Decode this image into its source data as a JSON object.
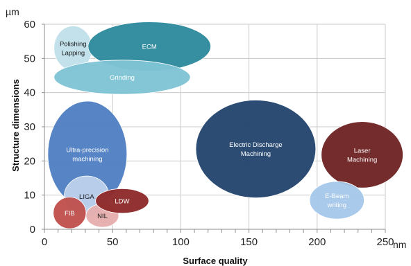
{
  "chart_data": {
    "type": "bubble",
    "xlabel": "Surface quality",
    "ylabel": "Structure dimensions",
    "x_unit": "nm",
    "y_unit": "µm",
    "xlim": [
      0,
      250
    ],
    "ylim": [
      0,
      60
    ],
    "x_ticks": [
      0,
      50,
      100,
      150,
      200,
      250
    ],
    "y_ticks": [
      0,
      10,
      20,
      30,
      40,
      50,
      60
    ],
    "grid": true,
    "bubbles": [
      {
        "id": "polishing-lapping",
        "lines": [
          "Polishing",
          "Lapping"
        ],
        "x": 21,
        "y": 53,
        "rx": 14,
        "ry": 6.5,
        "color": "#bfe0ea",
        "text_color": "#1a1a1a"
      },
      {
        "id": "ecm",
        "lines": [
          "ECM"
        ],
        "x": 77,
        "y": 53.5,
        "rx": 45,
        "ry": 7.2,
        "color": "#2e8a9d",
        "text_color": "#ffffff"
      },
      {
        "id": "grinding",
        "lines": [
          "Grinding"
        ],
        "x": 57,
        "y": 44.5,
        "rx": 50,
        "ry": 5,
        "color": "#7fc4d4",
        "text_color": "#ffffff"
      },
      {
        "id": "ultra-precision-machining",
        "lines": [
          "Ultra-precision",
          "machining"
        ],
        "x": 31.5,
        "y": 22,
        "rx": 29,
        "ry": 15.5,
        "color": "#4f7fc2",
        "text_color": "#ffffff"
      },
      {
        "id": "liga",
        "lines": [
          "LIGA"
        ],
        "x": 31,
        "y": 9.6,
        "rx": 16.5,
        "ry": 6,
        "color": "#bcd0ea",
        "text_color": "#1a1a1a"
      },
      {
        "id": "fib",
        "lines": [
          "FIB"
        ],
        "x": 18.5,
        "y": 4.8,
        "rx": 12,
        "ry": 4.6,
        "color": "#c0504d",
        "text_color": "#ffffff"
      },
      {
        "id": "nil",
        "lines": [
          "NIL"
        ],
        "x": 42.5,
        "y": 4,
        "rx": 12,
        "ry": 3.4,
        "color": "#e6aeae",
        "text_color": "#1a1a1a"
      },
      {
        "id": "ldw",
        "lines": [
          "LDW"
        ],
        "x": 57,
        "y": 8.3,
        "rx": 19.5,
        "ry": 3.6,
        "color": "#8f2a2a",
        "text_color": "#ffffff"
      },
      {
        "id": "electric-discharge-machining",
        "lines": [
          "Electric Discharge",
          "Machining"
        ],
        "x": 155,
        "y": 23.5,
        "rx": 44,
        "ry": 14.3,
        "color": "#23456e",
        "text_color": "#ffffff"
      },
      {
        "id": "laser-machining",
        "lines": [
          "Laser",
          "Machining"
        ],
        "x": 233,
        "y": 21.8,
        "rx": 30,
        "ry": 9.7,
        "color": "#6f2324",
        "text_color": "#ffffff"
      },
      {
        "id": "e-beam-writing",
        "lines": [
          "E-Beam",
          "writing"
        ],
        "x": 214.5,
        "y": 8.5,
        "rx": 20,
        "ry": 5.5,
        "color": "#a6c8ea",
        "text_color": "#ffffff"
      }
    ]
  }
}
